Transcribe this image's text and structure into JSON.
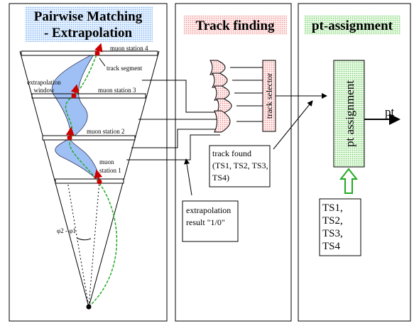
{
  "panel_titles": {
    "extrapolation": [
      "Pairwise Matching",
      "- Extrapolation"
    ],
    "track_finding": "Track finding",
    "pt_assignment": "pt-assignment"
  },
  "cone_labels": {
    "station_4": "muon station 4",
    "track_segment": "track segment",
    "extrapolation_window": [
      "extrapolation",
      "window"
    ],
    "station_3": "muon station 3",
    "station_2": "muon station 2",
    "station_1": [
      "muon",
      "station 1"
    ],
    "angle": "φ2 - φ1"
  },
  "track_selector": "track selector",
  "track_found": [
    "track found",
    "(TS1, TS2, TS3,",
    "TS4)"
  ],
  "extrapolation_result": [
    "extrapolation",
    "result \"1/0\""
  ],
  "pt_assignment": "pt assignment",
  "pt_output": "pt",
  "track_segments": [
    "TS1,",
    "TS2,",
    "TS3,",
    "TS4"
  ]
}
